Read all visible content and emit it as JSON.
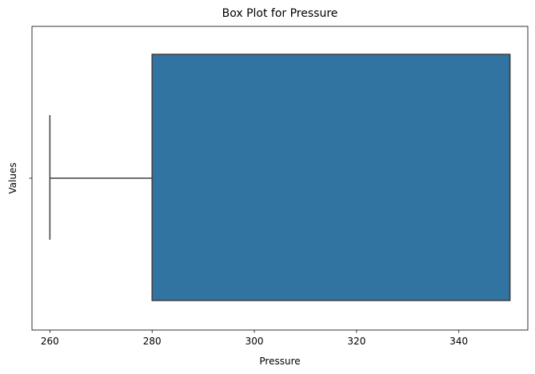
{
  "chart_data": {
    "type": "box",
    "title": "Box Plot for Pressure",
    "xlabel": "Pressure",
    "ylabel": "Values",
    "xlim": [
      256.5,
      353.5
    ],
    "xticks": [
      260,
      280,
      300,
      320,
      340
    ],
    "orientation": "horizontal",
    "grid": false,
    "box": {
      "whisker_low": 260,
      "q1": 280,
      "median": 350,
      "q3": 350,
      "whisker_high": 350
    },
    "colors": {
      "box_fill": "#3274a1",
      "line": "#3f3f3f",
      "axes": "#000000"
    }
  }
}
